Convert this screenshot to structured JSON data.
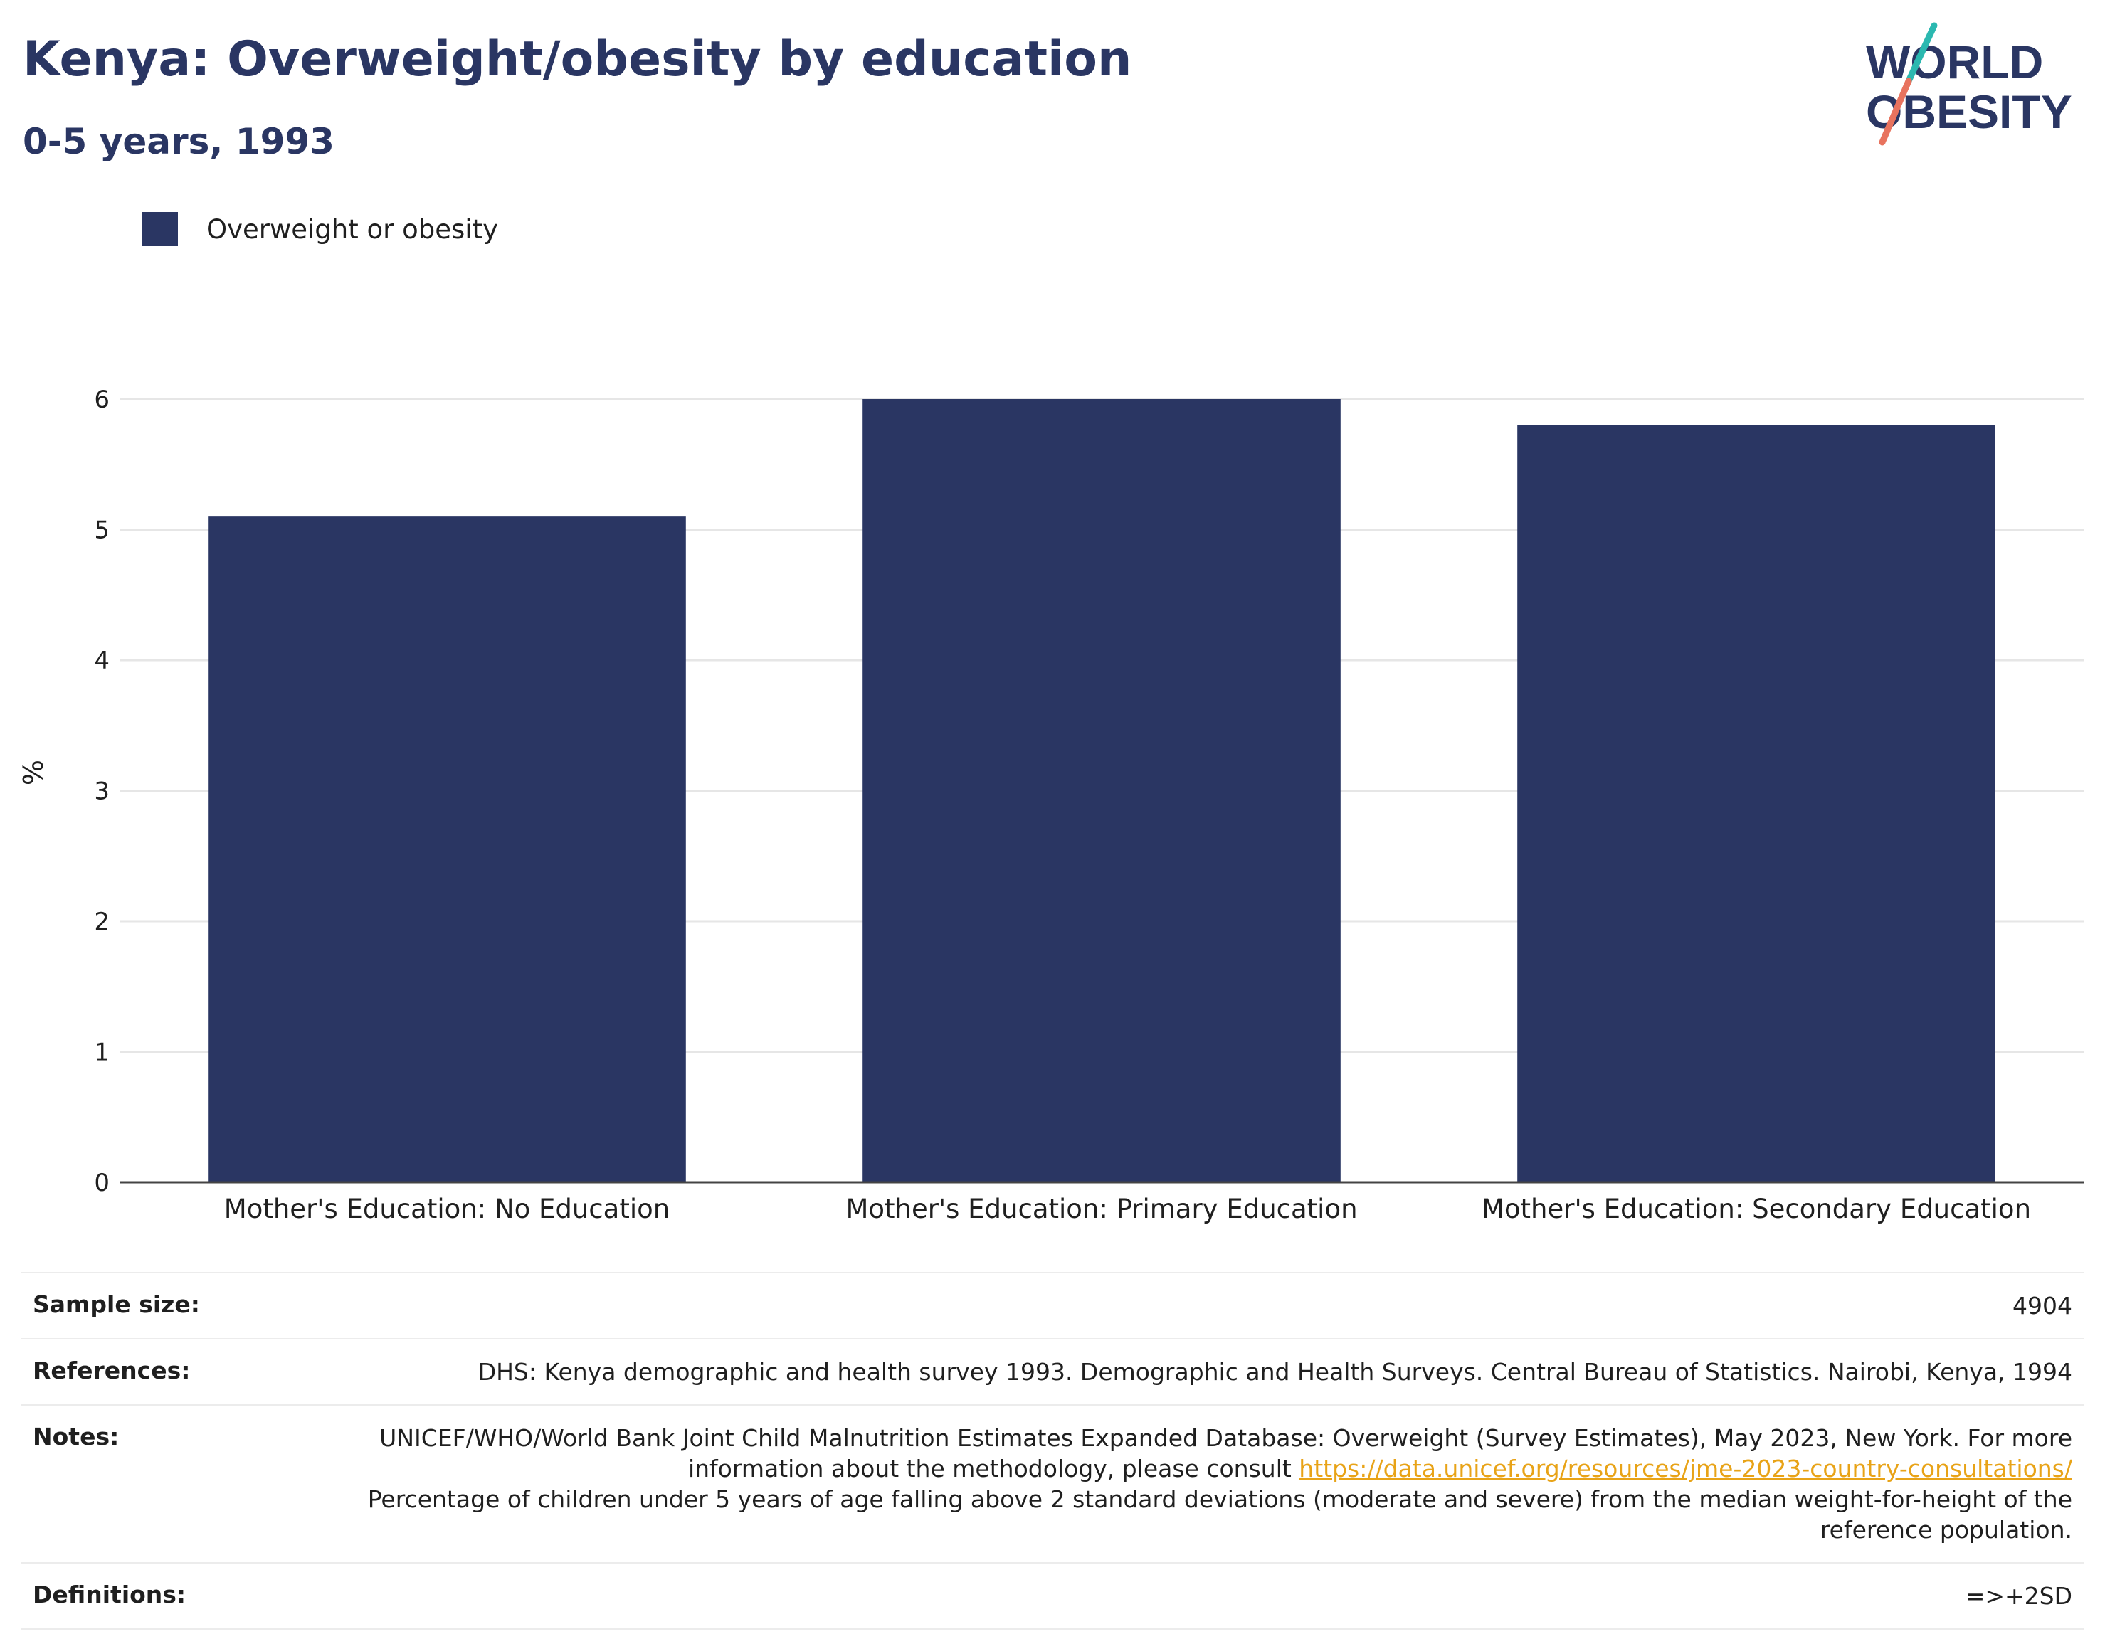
{
  "header": {
    "title": "Kenya: Overweight/obesity by education",
    "subtitle": "0-5 years, 1993"
  },
  "logo": {
    "line1": "WORLD",
    "line2": "OBESITY",
    "colors": {
      "text": "#2a3663",
      "slash_top": "#2bb8b0",
      "slash_bottom": "#e8735e"
    }
  },
  "colors": {
    "bar": "#2a3663",
    "grid": "#e6e6e6",
    "axis": "#444444",
    "link": "#e8a317"
  },
  "chart_data": {
    "type": "bar",
    "categories": [
      "Mother's Education: No Education",
      "Mother's Education: Primary Education",
      "Mother's Education: Secondary Education"
    ],
    "series": [
      {
        "name": "Overweight or obesity",
        "values": [
          5.1,
          6.0,
          5.8
        ]
      }
    ],
    "title": "",
    "xlabel": "",
    "ylabel": "%",
    "ylim": [
      0,
      6.2
    ],
    "yticks": [
      0,
      1,
      2,
      3,
      4,
      5,
      6
    ],
    "grid": true,
    "legend_position": "top-left"
  },
  "info": {
    "rows": [
      {
        "label": "Sample size:",
        "value": "4904"
      },
      {
        "label": "References:",
        "value": "DHS: Kenya demographic and health survey 1993. Demographic and Health Surveys. Central Bureau of Statistics. Nairobi, Kenya, 1994"
      },
      {
        "label": "Notes:",
        "value_before": "UNICEF/WHO/World Bank Joint Child Malnutrition Estimates Expanded Database: Overweight (Survey Estimates), May 2023, New York. For more information about the methodology, please consult ",
        "link": "https://data.unicef.org/resources/jme-2023-country-consultations/",
        "value_after": "Percentage of children under 5 years of age falling above 2 standard deviations (moderate and severe) from the median weight-for-height of the reference population."
      },
      {
        "label": "Definitions:",
        "value": "=>+2SD"
      }
    ]
  }
}
